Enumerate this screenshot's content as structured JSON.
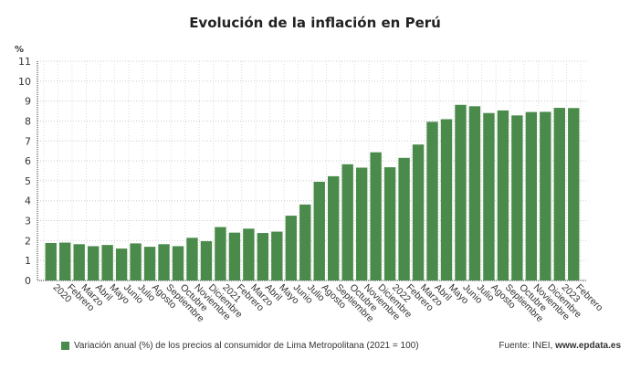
{
  "chart_data": {
    "type": "bar",
    "title": "Evolución de la inflación en Perú",
    "ylabel": "%",
    "ylim": [
      0,
      11
    ],
    "yticks": [
      0,
      1,
      2,
      3,
      4,
      5,
      6,
      7,
      8,
      9,
      10,
      11
    ],
    "grid": true,
    "legend_position": "bottom-left",
    "color": "#4a8a4a",
    "categories": [
      "2020",
      "Febrero",
      "Marzo",
      "Abril",
      "Mayo",
      "Junio",
      "Julio",
      "Agosto",
      "Septiembre",
      "Octubre",
      "Noviembre",
      "Diciembre",
      "2021",
      "Febrero",
      "Marzo",
      "Abril",
      "Mayo",
      "Junio",
      "Julio",
      "Agosto",
      "Septiembre",
      "Octubre",
      "Noviembre",
      "Diciembre",
      "2022",
      "Febrero",
      "Marzo",
      "Abril",
      "Mayo",
      "Junio",
      "Julio",
      "Agosto",
      "Septiembre",
      "Octubre",
      "Noviembre",
      "Diciembre",
      "2023",
      "Febrero"
    ],
    "series": [
      {
        "name": "Variación anual (%) de los precios al consumidor de Lima Metropolitana (2021 = 100)",
        "values": [
          1.88,
          1.9,
          1.82,
          1.72,
          1.78,
          1.6,
          1.86,
          1.69,
          1.82,
          1.72,
          2.14,
          1.97,
          2.68,
          2.4,
          2.6,
          2.38,
          2.45,
          3.25,
          3.81,
          4.95,
          5.23,
          5.83,
          5.66,
          6.43,
          5.68,
          6.15,
          6.82,
          7.96,
          8.09,
          8.81,
          8.74,
          8.4,
          8.53,
          8.28,
          8.45,
          8.46,
          8.66,
          8.65
        ]
      }
    ]
  },
  "source_label": "Fuente: INEI, ",
  "source_site": "www.epdata.es"
}
